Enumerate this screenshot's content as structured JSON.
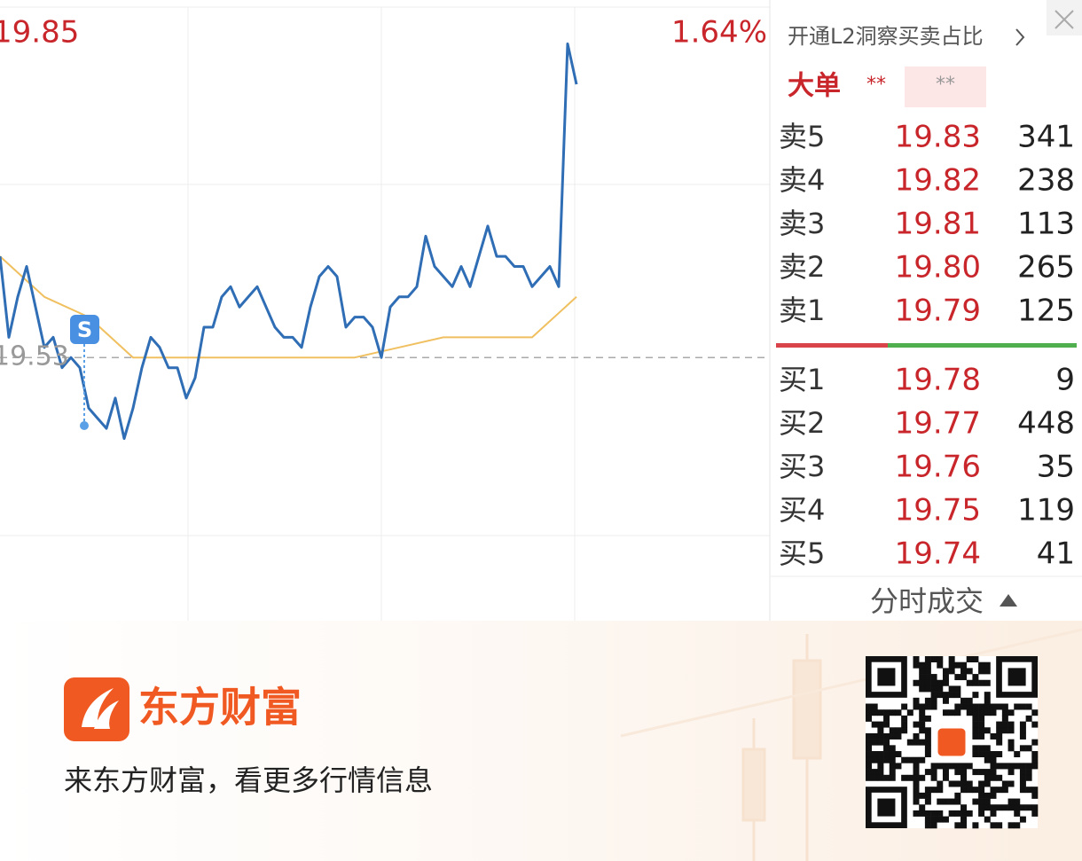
{
  "chart": {
    "high_label": "19.85",
    "prev_close_label": "19.53",
    "change_label": "1.64%",
    "marker": "S",
    "ylim": [
      19.27,
      19.85
    ],
    "price": [
      19.63,
      19.55,
      19.59,
      19.62,
      19.58,
      19.54,
      19.55,
      19.52,
      19.53,
      19.52,
      19.48,
      19.47,
      19.46,
      19.49,
      19.45,
      19.48,
      19.52,
      19.55,
      19.54,
      19.52,
      19.52,
      19.49,
      19.51,
      19.56,
      19.56,
      19.59,
      19.6,
      19.58,
      19.59,
      19.6,
      19.58,
      19.56,
      19.55,
      19.55,
      19.54,
      19.58,
      19.61,
      19.62,
      19.61,
      19.56,
      19.57,
      19.57,
      19.56,
      19.53,
      19.58,
      19.59,
      19.59,
      19.6,
      19.65,
      19.62,
      19.61,
      19.6,
      19.62,
      19.6,
      19.63,
      19.66,
      19.63,
      19.63,
      19.62,
      19.62,
      19.6,
      19.61,
      19.62,
      19.6,
      19.84,
      19.8
    ],
    "avg": [
      19.63,
      19.59,
      19.57,
      19.53,
      19.53,
      19.53,
      19.53,
      19.53,
      19.53,
      19.54,
      19.55,
      19.55,
      19.55,
      19.59
    ]
  },
  "order_book": {
    "promo": "开通L2洞察买卖占比",
    "big_order": {
      "label": "大单",
      "value1": "**",
      "value2": "**"
    },
    "sell": [
      {
        "label": "卖5",
        "price": "19.83",
        "volume": 341
      },
      {
        "label": "卖4",
        "price": "19.82",
        "volume": 238
      },
      {
        "label": "卖3",
        "price": "19.81",
        "volume": 113
      },
      {
        "label": "卖2",
        "price": "19.80",
        "volume": 265
      },
      {
        "label": "卖1",
        "price": "19.79",
        "volume": 125
      }
    ],
    "buy": [
      {
        "label": "买1",
        "price": "19.78",
        "volume": 9
      },
      {
        "label": "买2",
        "price": "19.77",
        "volume": 448
      },
      {
        "label": "买3",
        "price": "19.76",
        "volume": 35
      },
      {
        "label": "买4",
        "price": "19.75",
        "volume": 119
      },
      {
        "label": "买5",
        "price": "19.74",
        "volume": 41
      }
    ],
    "footer": "分时成交"
  },
  "banner": {
    "brand": "东方财富",
    "slogan": "来东方财富，看更多行情信息"
  }
}
